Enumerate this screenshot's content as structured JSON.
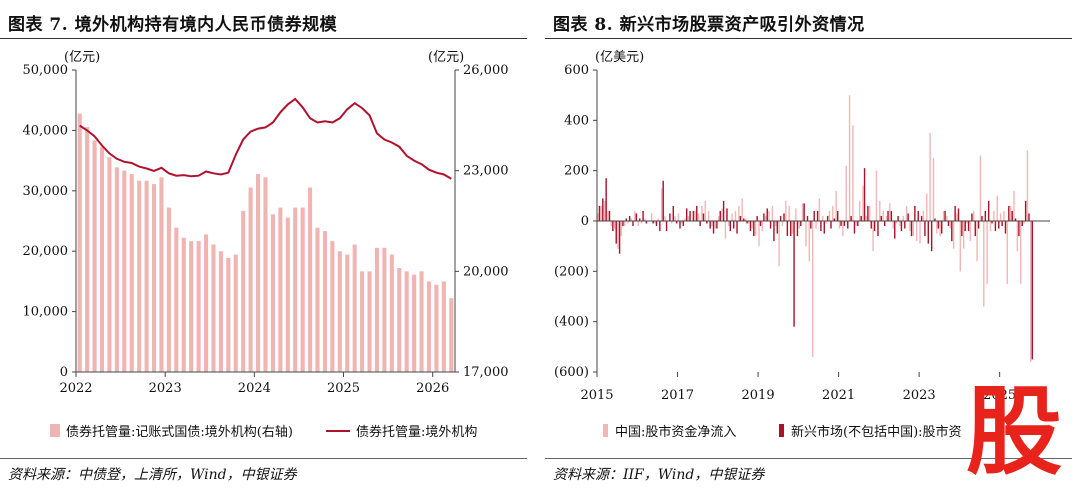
{
  "left_panel": {
    "title": "图表 7. 境外机构持有境内人民币债券规模",
    "source": "资料来源：中债登，上清所，Wind，中银证券"
  },
  "right_panel": {
    "title": "图表 8. 新兴市场股票资产吸引外资情况",
    "source": "资料来源：IIF，Wind，中银证券"
  },
  "watermark": "股",
  "colors": {
    "bar_light": "#f0b4b2",
    "line_dark": "#b0122e",
    "bar_dark": "#a8122a",
    "bar_pink": "#f2b6b6",
    "neg_label": "#e0261c"
  },
  "chart_data": [
    {
      "type": "bar+line",
      "left_unit": "(亿元)",
      "right_unit": "(亿元)",
      "y_left_ticks": [
        "0",
        "10,000",
        "20,000",
        "30,000",
        "40,000",
        "50,000"
      ],
      "y_right_ticks": [
        "17,000",
        "20,000",
        "23,000",
        "26,000"
      ],
      "x_ticks": [
        "2022",
        "2023",
        "2024",
        "2025",
        "2026"
      ],
      "ylim_left": [
        0,
        50000
      ],
      "ylim_right": [
        17000,
        26000
      ],
      "grid": false,
      "legend_position": "bottom",
      "series": [
        {
          "name": "债券托管量:记账式国债:境外机构(右轴)",
          "type": "bar",
          "axis": "right",
          "x": [
            "2022-01",
            "2022-02",
            "2022-03",
            "2022-04",
            "2022-05",
            "2022-06",
            "2022-07",
            "2022-08",
            "2022-09",
            "2022-10",
            "2022-11",
            "2022-12",
            "2023-01",
            "2023-02",
            "2023-03",
            "2023-04",
            "2023-05",
            "2023-06",
            "2023-07",
            "2023-08",
            "2023-09",
            "2023-10",
            "2023-11",
            "2023-12",
            "2024-01",
            "2024-02",
            "2024-03",
            "2024-04",
            "2024-05",
            "2024-06",
            "2024-07",
            "2024-08",
            "2024-09",
            "2024-10",
            "2024-11",
            "2024-12",
            "2025-01",
            "2025-02",
            "2025-03",
            "2025-04",
            "2025-05",
            "2025-06",
            "2025-07",
            "2025-08",
            "2025-09",
            "2025-10",
            "2025-11",
            "2025-12",
            "2026-01",
            "2026-02",
            "2026-03"
          ],
          "values": [
            24700,
            24300,
            23900,
            23700,
            23400,
            23100,
            23000,
            22900,
            22700,
            22700,
            22600,
            22800,
            21900,
            21300,
            21000,
            20900,
            20900,
            21100,
            20800,
            20600,
            20400,
            20500,
            21800,
            22500,
            22900,
            22800,
            21700,
            21900,
            21600,
            21900,
            21900,
            22500,
            21300,
            21200,
            20900,
            20600,
            20500,
            20800,
            20000,
            20000,
            20700,
            20700,
            20500,
            20100,
            20000,
            19900,
            20000,
            19700,
            19600,
            19700,
            19200
          ]
        },
        {
          "name": "债券托管量:境外机构",
          "type": "line",
          "axis": "left",
          "x": [
            "2022-01",
            "2022-02",
            "2022-03",
            "2022-04",
            "2022-05",
            "2022-06",
            "2022-07",
            "2022-08",
            "2022-09",
            "2022-10",
            "2022-11",
            "2022-12",
            "2023-01",
            "2023-02",
            "2023-03",
            "2023-04",
            "2023-05",
            "2023-06",
            "2023-07",
            "2023-08",
            "2023-09",
            "2023-10",
            "2023-11",
            "2023-12",
            "2024-01",
            "2024-02",
            "2024-03",
            "2024-04",
            "2024-05",
            "2024-06",
            "2024-07",
            "2024-08",
            "2024-09",
            "2024-10",
            "2024-11",
            "2024-12",
            "2025-01",
            "2025-02",
            "2025-03",
            "2025-04",
            "2025-05",
            "2025-06",
            "2025-07",
            "2025-08",
            "2025-09",
            "2025-10",
            "2025-11",
            "2025-12",
            "2026-01",
            "2026-02",
            "2026-03"
          ],
          "values": [
            40800,
            40000,
            39000,
            37500,
            36200,
            35300,
            34800,
            34600,
            34000,
            33700,
            33300,
            33800,
            32900,
            32500,
            32600,
            32400,
            32500,
            33200,
            32900,
            32700,
            33000,
            36000,
            38500,
            39800,
            40300,
            40500,
            41300,
            43000,
            44300,
            45200,
            43800,
            42000,
            41300,
            41500,
            41300,
            42000,
            43500,
            44500,
            43700,
            42500,
            39500,
            38500,
            38000,
            37300,
            35800,
            35000,
            34400,
            33500,
            33000,
            32700,
            32000
          ]
        }
      ]
    },
    {
      "type": "bar",
      "unit": "(亿美元)",
      "y_ticks": [
        "600",
        "400",
        "200",
        "0",
        "(200)",
        "(400)",
        "(600)"
      ],
      "x_ticks": [
        "2015",
        "2017",
        "2019",
        "2021",
        "2023",
        "2025"
      ],
      "ylim": [
        -600,
        600
      ],
      "xlim": [
        "2015-01",
        "2026-03"
      ],
      "grid": false,
      "legend_position": "bottom",
      "series": [
        {
          "name": "中国:股市资金净流入",
          "values_note": "monthly values, billions of USD (亿美元)",
          "values": [
            30,
            60,
            80,
            40,
            -20,
            -30,
            -110,
            -60,
            -20,
            -10,
            10,
            40,
            -20,
            -10,
            10,
            0,
            30,
            -10,
            10,
            130,
            20,
            0,
            -10,
            20,
            30,
            -10,
            10,
            20,
            0,
            40,
            30,
            60,
            80,
            40,
            -20,
            -30,
            20,
            50,
            -70,
            -20,
            30,
            40,
            60,
            90,
            10,
            -10,
            -30,
            -60,
            -100,
            -40,
            20,
            40,
            60,
            -20,
            -180,
            -20,
            80,
            60,
            -50,
            50,
            -30,
            70,
            -100,
            -160,
            -540,
            -30,
            90,
            20,
            -10,
            40,
            60,
            120,
            -30,
            -60,
            220,
            500,
            380,
            -20,
            80,
            140,
            20,
            60,
            -120,
            200,
            80,
            40,
            20,
            70,
            -30,
            -10,
            -20,
            20,
            60,
            -40,
            -60,
            -80,
            -90,
            40,
            110,
            350,
            250,
            -50,
            -60,
            40,
            20,
            -30,
            -110,
            30,
            -200,
            -110,
            -10,
            -80,
            40,
            -160,
            260,
            -340,
            -250,
            -40,
            40,
            100,
            30,
            40,
            -250,
            60,
            120,
            -120,
            -250,
            -10,
            280,
            -560
          ]
        },
        {
          "name": "新兴市场(不包括中国):股市资",
          "values_note": "monthly values, billions of USD (亿美元)",
          "values": [
            60,
            90,
            170,
            40,
            -40,
            -90,
            -130,
            -20,
            10,
            20,
            -20,
            30,
            10,
            40,
            -10,
            0,
            -10,
            -20,
            -40,
            160,
            -40,
            30,
            60,
            -10,
            -30,
            -20,
            50,
            40,
            40,
            60,
            -20,
            30,
            -10,
            -30,
            -50,
            -30,
            40,
            80,
            50,
            -40,
            -30,
            -50,
            20,
            10,
            -10,
            -40,
            -60,
            20,
            -20,
            30,
            50,
            -30,
            -80,
            -50,
            20,
            30,
            -60,
            -60,
            -420,
            -60,
            -20,
            70,
            20,
            -30,
            40,
            40,
            -40,
            -50,
            20,
            -30,
            10,
            40,
            -20,
            -20,
            -30,
            20,
            -50,
            -20,
            20,
            210,
            60,
            -30,
            -40,
            -60,
            20,
            -20,
            40,
            40,
            -70,
            20,
            -40,
            -30,
            30,
            -60,
            60,
            40,
            20,
            -60,
            -90,
            -120,
            10,
            -30,
            -50,
            40,
            -20,
            -80,
            60,
            50,
            -60,
            -40,
            -40,
            30,
            -60,
            -30,
            20,
            40,
            80,
            -10,
            -40,
            -30,
            -20,
            -50,
            60,
            40,
            10,
            -60,
            -20,
            80,
            30,
            -550
          ]
        }
      ]
    }
  ]
}
